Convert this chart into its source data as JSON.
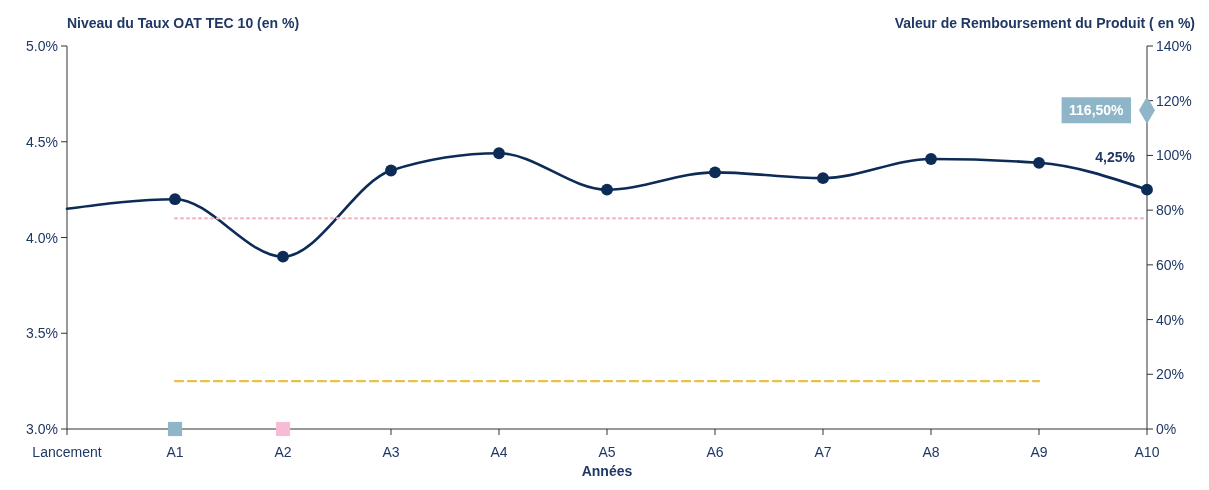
{
  "chart_data": {
    "type": "line",
    "ylabel": "Niveau du Taux OAT TEC 10 (en %)",
    "y2label": "Valeur de Remboursement du Produit ( en %)",
    "xlabel": "Années",
    "categories": [
      "Lancement",
      "A1",
      "A2",
      "A3",
      "A4",
      "A5",
      "A6",
      "A7",
      "A8",
      "A9",
      "A10"
    ],
    "ylim": [
      3,
      5
    ],
    "yticks": [
      {
        "value": 3,
        "label": "3.0%"
      },
      {
        "value": 3.5,
        "label": "3.5%"
      },
      {
        "value": 4,
        "label": "4.0%"
      },
      {
        "value": 4.5,
        "label": "4.5%"
      },
      {
        "value": 5,
        "label": "5.0%"
      }
    ],
    "y2lim": [
      0,
      140
    ],
    "y2ticks": [
      {
        "value": 0,
        "label": "0%"
      },
      {
        "value": 20,
        "label": "20%"
      },
      {
        "value": 40,
        "label": "40%"
      },
      {
        "value": 60,
        "label": "60%"
      },
      {
        "value": 80,
        "label": "80%"
      },
      {
        "value": 100,
        "label": "100%"
      },
      {
        "value": 120,
        "label": "120%"
      },
      {
        "value": 140,
        "label": "140%"
      }
    ],
    "grid": false,
    "series": [
      {
        "color": "#0d2b57",
        "marker": "none",
        "line_style": "solid",
        "values": [
          4.15,
          4.2,
          3.9,
          4.35,
          4.44,
          4.25,
          4.34,
          4.31,
          4.41,
          4.39,
          4.25
        ]
      },
      {
        "type": "scatter",
        "color": "#0d2b57",
        "marker": "circle",
        "values": [
          null,
          4.2,
          3.9,
          4.35,
          4.44,
          4.25,
          4.34,
          4.31,
          4.41,
          4.39,
          4.25
        ],
        "value_labels": [
          null,
          null,
          null,
          null,
          null,
          null,
          null,
          null,
          null,
          null,
          "4,25%"
        ]
      },
      {
        "type": "line",
        "color": "#f4b8c8",
        "marker": "none",
        "line_style": "dotted",
        "values": [
          null,
          4.1,
          4.1,
          4.1,
          4.1,
          4.1,
          4.1,
          4.1,
          4.1,
          4.1,
          4.1
        ]
      },
      {
        "type": "line",
        "color": "#e8c14a",
        "marker": "none",
        "line_style": "dashed",
        "values": [
          null,
          3.25,
          3.25,
          3.25,
          3.25,
          3.25,
          3.25,
          3.25,
          3.25,
          3.25,
          null
        ]
      },
      {
        "type": "scatter",
        "color": "#8fb5c9",
        "marker": "square",
        "values": [
          null,
          3,
          null,
          null,
          null,
          null,
          null,
          null,
          null,
          null,
          null
        ]
      },
      {
        "type": "scatter",
        "color": "#f7bcd5",
        "marker": "square",
        "values": [
          null,
          null,
          3,
          null,
          null,
          null,
          null,
          null,
          null,
          null,
          null
        ]
      },
      {
        "type": "scatter",
        "color": "#8fb5c9",
        "marker": "diamond",
        "axis": "y2",
        "values": [
          null,
          null,
          null,
          null,
          null,
          null,
          null,
          null,
          null,
          null,
          116.5
        ],
        "value_labels": [
          null,
          null,
          null,
          null,
          null,
          null,
          null,
          null,
          null,
          null,
          "116,50%"
        ]
      }
    ]
  }
}
